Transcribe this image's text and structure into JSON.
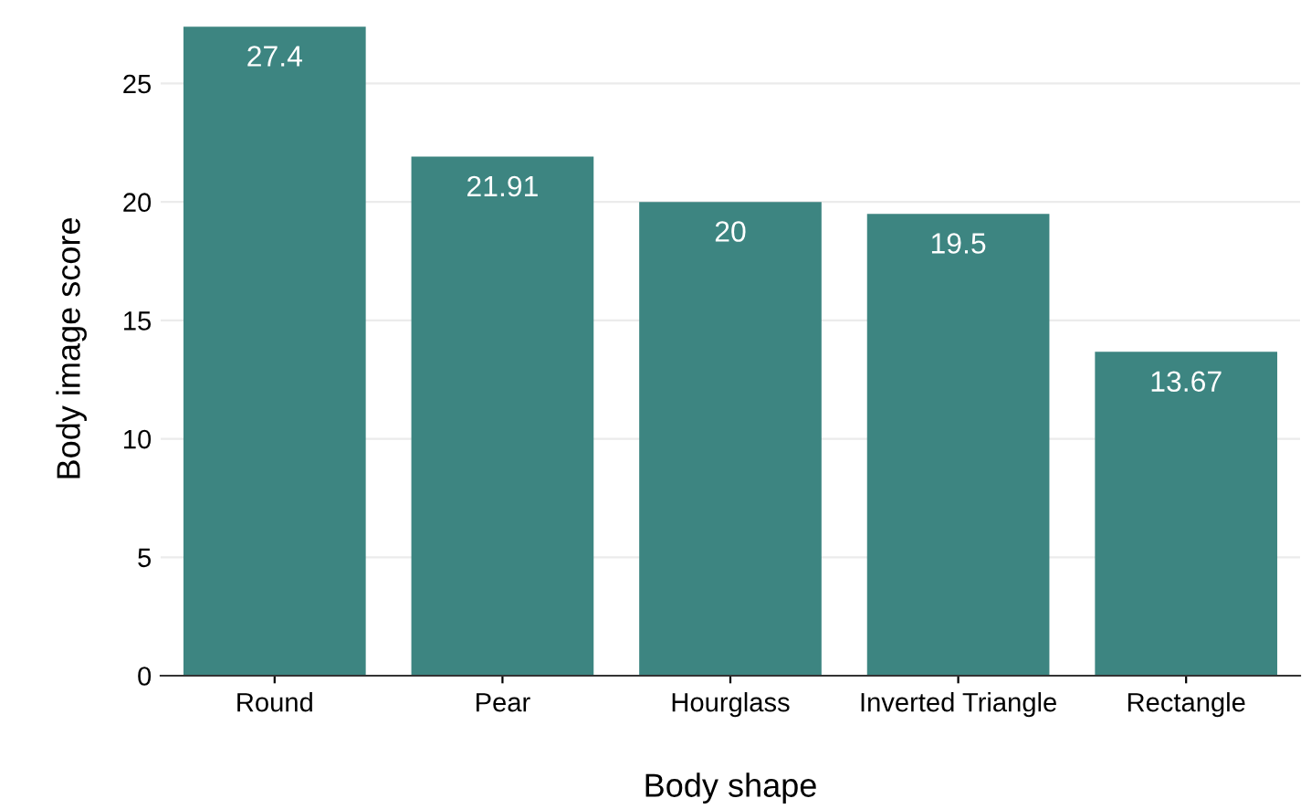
{
  "chart_data": {
    "type": "bar",
    "xlabel": "Body shape",
    "ylabel": "Body image score",
    "categories": [
      "Round",
      "Pear",
      "Hourglass",
      "Inverted Triangle",
      "Rectangle"
    ],
    "values": [
      27.4,
      21.91,
      20,
      19.5,
      13.67
    ],
    "color": "#3d8581",
    "ylim": [
      0,
      27.6
    ],
    "yticks": [
      0,
      5,
      10,
      15,
      20,
      25
    ],
    "grid": "y",
    "data_labels": true
  }
}
